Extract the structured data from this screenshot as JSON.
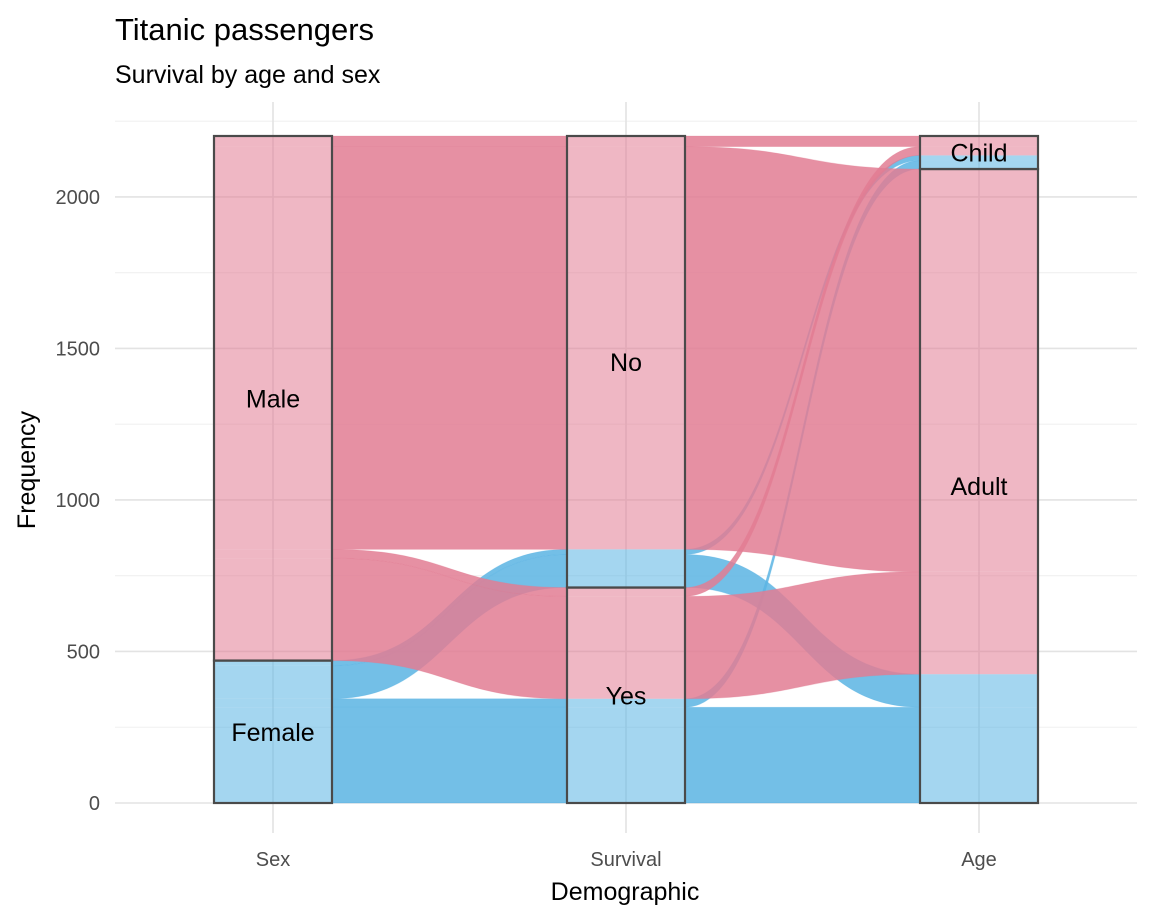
{
  "chart_data": {
    "type": "alluvial",
    "title": "Titanic passengers",
    "subtitle": "Survival by age and sex",
    "xlabel": "Demographic",
    "ylabel": "Frequency",
    "ylim": [
      0,
      2201
    ],
    "yticks": [
      0,
      500,
      1000,
      1500,
      2000
    ],
    "grid": true,
    "legend": "none",
    "colors": {
      "Female": "#5ab4e3",
      "Male": "#e27c93"
    },
    "axes": [
      {
        "name": "Sex",
        "strata": [
          "Female",
          "Male"
        ]
      },
      {
        "name": "Survival",
        "strata": [
          "Yes",
          "No"
        ]
      },
      {
        "name": "Age",
        "strata": [
          "Adult",
          "Child"
        ]
      }
    ],
    "flows": [
      {
        "Sex": "Female",
        "Survival": "Yes",
        "Age": "Adult",
        "freq": 316
      },
      {
        "Sex": "Female",
        "Survival": "Yes",
        "Age": "Child",
        "freq": 28
      },
      {
        "Sex": "Female",
        "Survival": "No",
        "Age": "Adult",
        "freq": 109
      },
      {
        "Sex": "Female",
        "Survival": "No",
        "Age": "Child",
        "freq": 17
      },
      {
        "Sex": "Male",
        "Survival": "Yes",
        "Age": "Adult",
        "freq": 338
      },
      {
        "Sex": "Male",
        "Survival": "Yes",
        "Age": "Child",
        "freq": 29
      },
      {
        "Sex": "Male",
        "Survival": "No",
        "Age": "Adult",
        "freq": 1329
      },
      {
        "Sex": "Male",
        "Survival": "No",
        "Age": "Child",
        "freq": 35
      }
    ]
  }
}
